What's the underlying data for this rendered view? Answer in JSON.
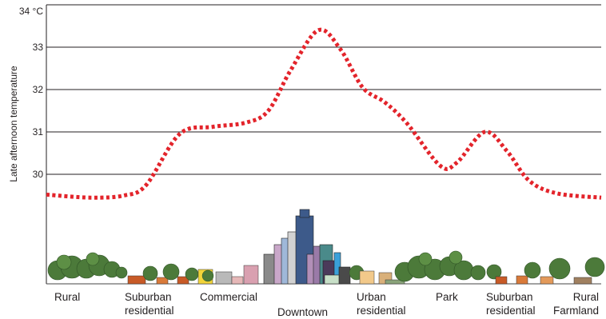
{
  "chart_data": {
    "type": "line",
    "title": "",
    "xlabel": "",
    "ylabel": "Late afternoon temperature",
    "unit": "°C",
    "ylim": [
      29.1,
      34
    ],
    "y_ticks": [
      {
        "value": 30,
        "label": "30"
      },
      {
        "value": 31,
        "label": "31"
      },
      {
        "value": 32,
        "label": "32"
      },
      {
        "value": 33,
        "label": "33"
      },
      {
        "value": 34,
        "label": "34 °C"
      }
    ],
    "grid": true,
    "line_style": "dotted",
    "line_color": "#e3242b",
    "series": [
      {
        "values": [
          {
            "x": 0.0,
            "y": 29.52
          },
          {
            "x": 0.08,
            "y": 29.45
          },
          {
            "x": 0.14,
            "y": 29.5
          },
          {
            "x": 0.18,
            "y": 29.75
          },
          {
            "x": 0.24,
            "y": 30.95
          },
          {
            "x": 0.3,
            "y": 31.12
          },
          {
            "x": 0.36,
            "y": 31.22
          },
          {
            "x": 0.4,
            "y": 31.5
          },
          {
            "x": 0.44,
            "y": 32.45
          },
          {
            "x": 0.49,
            "y": 33.4
          },
          {
            "x": 0.53,
            "y": 32.95
          },
          {
            "x": 0.57,
            "y": 32.05
          },
          {
            "x": 0.61,
            "y": 31.7
          },
          {
            "x": 0.65,
            "y": 31.2
          },
          {
            "x": 0.71,
            "y": 30.2
          },
          {
            "x": 0.74,
            "y": 30.28
          },
          {
            "x": 0.79,
            "y": 31.0
          },
          {
            "x": 0.83,
            "y": 30.55
          },
          {
            "x": 0.87,
            "y": 29.85
          },
          {
            "x": 0.92,
            "y": 29.55
          },
          {
            "x": 1.0,
            "y": 29.45
          }
        ]
      }
    ],
    "zones": [
      "Rural",
      "Suburban\nresidential",
      "Commercial",
      "Downtown",
      "Urban\nresidential",
      "Park",
      "Suburban\nresidential",
      "Rural\nFarmland"
    ]
  }
}
